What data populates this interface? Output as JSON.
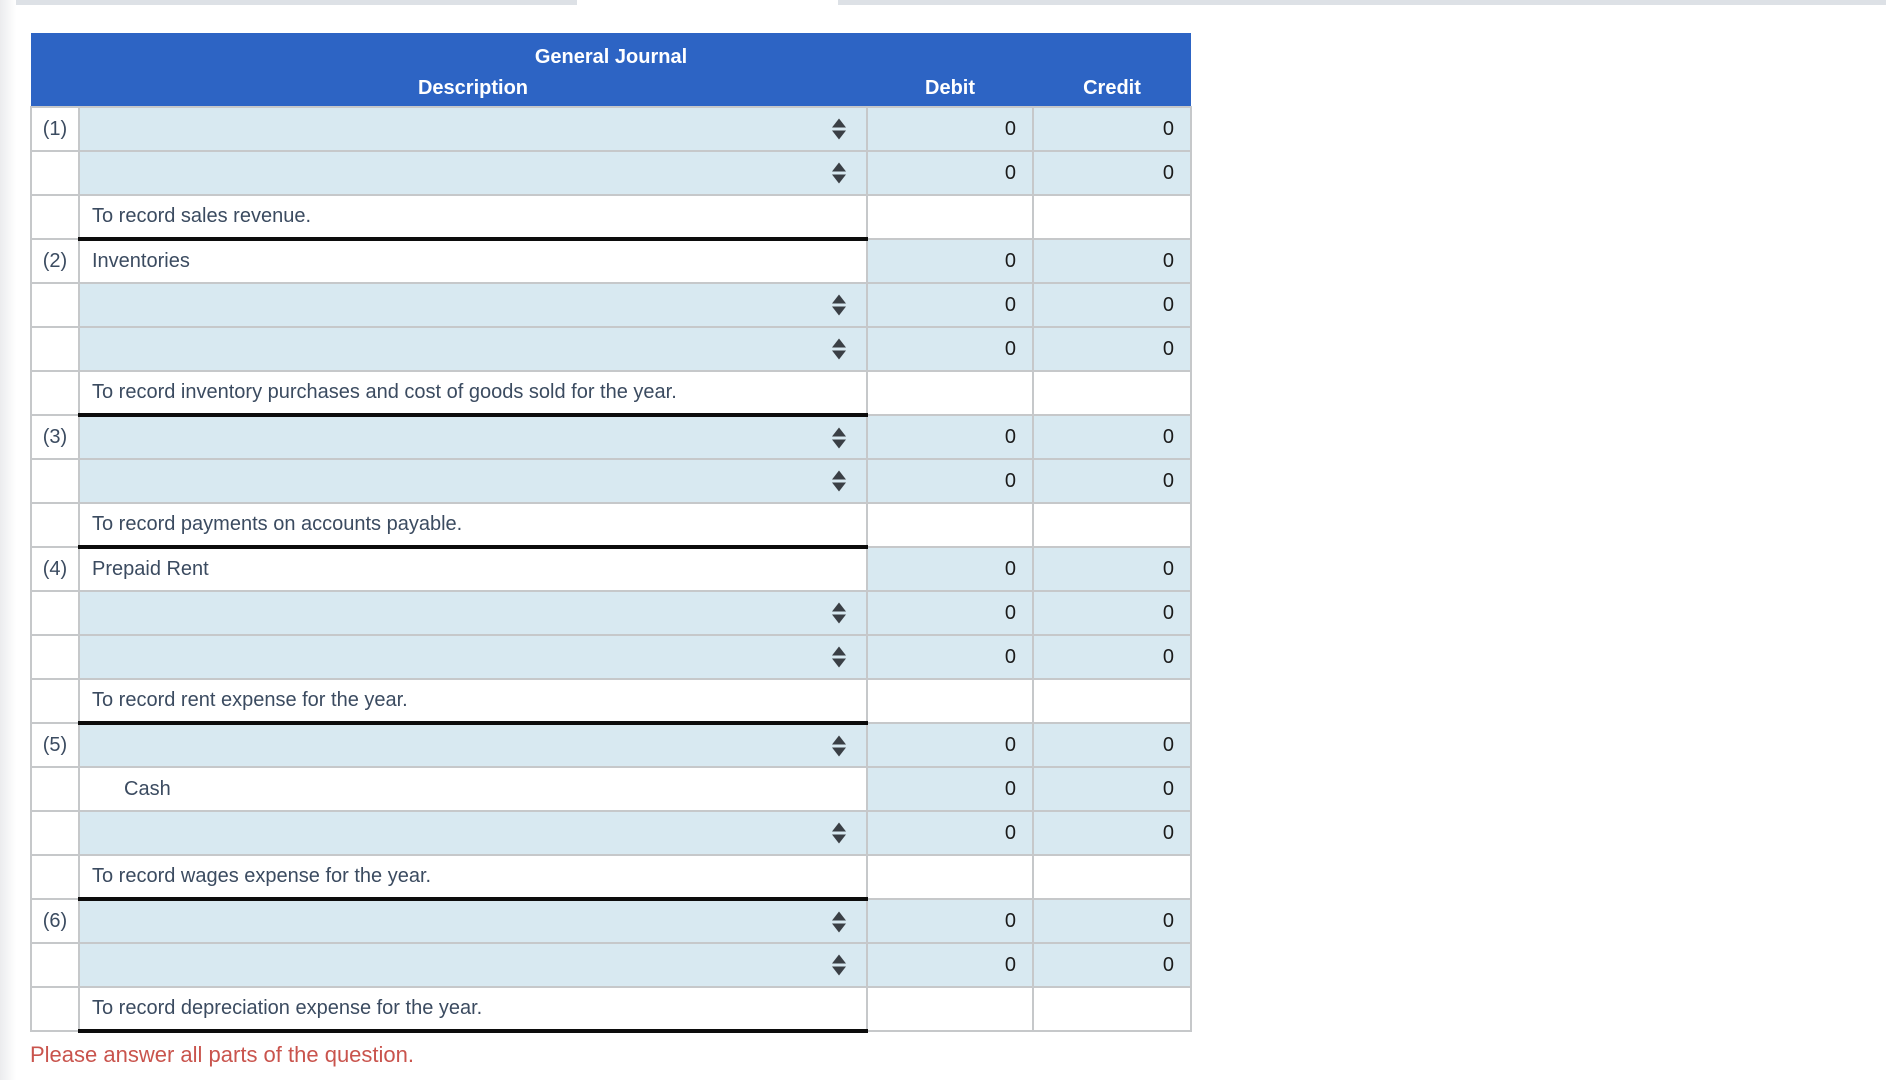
{
  "journal": {
    "title": "General Journal",
    "columns": {
      "description": "Description",
      "debit": "Debit",
      "credit": "Credit"
    },
    "rows": [
      {
        "num": "(1)",
        "type": "select",
        "desc": "",
        "debit": "0",
        "credit": "0"
      },
      {
        "num": "",
        "type": "select",
        "desc": "",
        "debit": "0",
        "credit": "0"
      },
      {
        "num": "",
        "type": "memo",
        "desc": "To record sales revenue.",
        "debit": "",
        "credit": ""
      },
      {
        "num": "(2)",
        "type": "given",
        "desc": "Inventories",
        "indent": false,
        "debit": "0",
        "credit": "0"
      },
      {
        "num": "",
        "type": "select",
        "desc": "",
        "debit": "0",
        "credit": "0"
      },
      {
        "num": "",
        "type": "select",
        "desc": "",
        "debit": "0",
        "credit": "0"
      },
      {
        "num": "",
        "type": "memo",
        "desc": "To record inventory purchases and cost of goods sold for the year.",
        "debit": "",
        "credit": ""
      },
      {
        "num": "(3)",
        "type": "select",
        "desc": "",
        "debit": "0",
        "credit": "0"
      },
      {
        "num": "",
        "type": "select",
        "desc": "",
        "debit": "0",
        "credit": "0"
      },
      {
        "num": "",
        "type": "memo",
        "desc": "To record payments on accounts payable.",
        "debit": "",
        "credit": ""
      },
      {
        "num": "(4)",
        "type": "given",
        "desc": "Prepaid Rent",
        "indent": false,
        "debit": "0",
        "credit": "0"
      },
      {
        "num": "",
        "type": "select",
        "desc": "",
        "debit": "0",
        "credit": "0"
      },
      {
        "num": "",
        "type": "select",
        "desc": "",
        "debit": "0",
        "credit": "0"
      },
      {
        "num": "",
        "type": "memo",
        "desc": "To record rent expense for the year.",
        "debit": "",
        "credit": ""
      },
      {
        "num": "(5)",
        "type": "select",
        "desc": "",
        "debit": "0",
        "credit": "0"
      },
      {
        "num": "",
        "type": "given",
        "desc": "Cash",
        "indent": true,
        "debit": "0",
        "credit": "0"
      },
      {
        "num": "",
        "type": "select",
        "desc": "",
        "debit": "0",
        "credit": "0"
      },
      {
        "num": "",
        "type": "memo",
        "desc": "To record wages expense for the year.",
        "debit": "",
        "credit": ""
      },
      {
        "num": "(6)",
        "type": "select",
        "desc": "",
        "debit": "0",
        "credit": "0"
      },
      {
        "num": "",
        "type": "select",
        "desc": "",
        "debit": "0",
        "credit": "0"
      },
      {
        "num": "",
        "type": "memo",
        "desc": "To record depreciation expense for the year.",
        "debit": "",
        "credit": ""
      }
    ]
  },
  "footer": {
    "warning": "Please answer all parts of the question."
  },
  "icons": {
    "account_dropdown": "updown-arrow-icon"
  },
  "colors": {
    "header_blue": "#2d64c4",
    "editable_cell_blue": "#d8e9f1",
    "grid_gray": "#c6c8ca",
    "text_navy": "#3b4b60",
    "memo_underline_black": "#0c0c0c",
    "warning_red": "#c9544d",
    "top_strip_gray": "#dde1e6"
  }
}
